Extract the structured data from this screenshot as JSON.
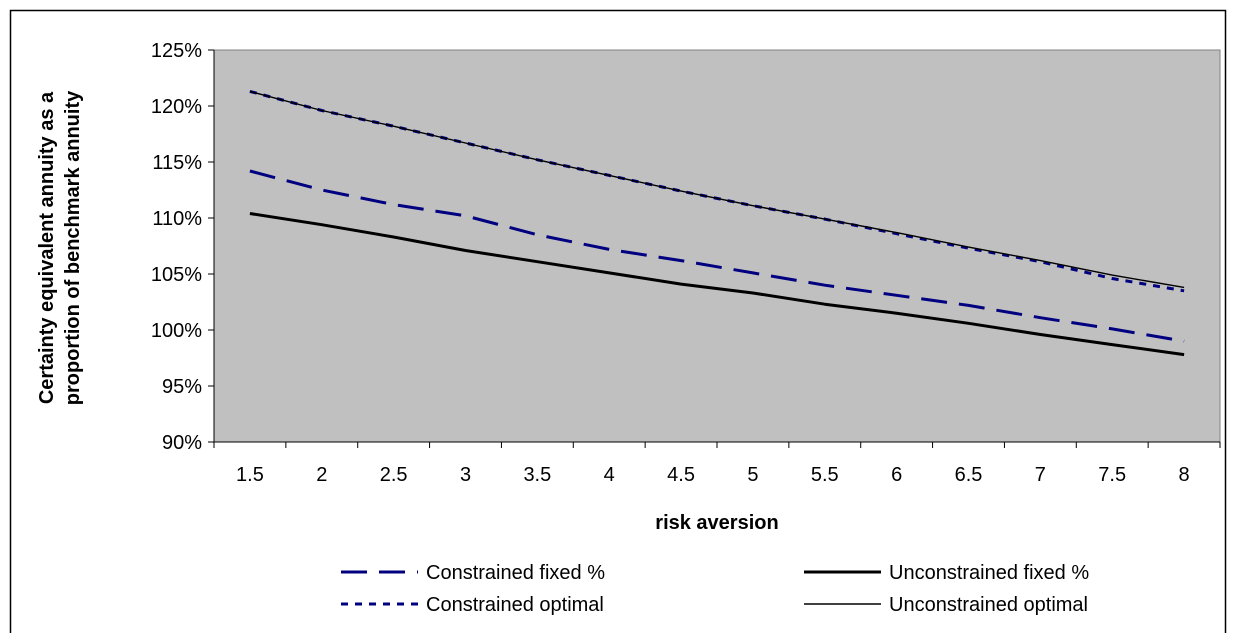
{
  "chart_data": {
    "type": "line",
    "title": "",
    "xlabel": "risk aversion",
    "ylabel_line1": "Certainty equivalent annuity as a",
    "ylabel_line2": "proportion of benchmark annuity",
    "x": [
      1.5,
      2,
      2.5,
      3,
      3.5,
      4,
      4.5,
      5,
      5.5,
      6,
      6.5,
      7,
      7.5,
      8
    ],
    "x_tick_labels": [
      "1.5",
      "2",
      "2.5",
      "3",
      "3.5",
      "4",
      "4.5",
      "5",
      "5.5",
      "6",
      "6.5",
      "7",
      "7.5",
      "8"
    ],
    "ylim": [
      90,
      125
    ],
    "y_tick_values": [
      90,
      95,
      100,
      105,
      110,
      115,
      120,
      125
    ],
    "y_tick_labels": [
      "90%",
      "95%",
      "100%",
      "105%",
      "110%",
      "115%",
      "120%",
      "125%"
    ],
    "grid": false,
    "plot_background": "#C0C0C0",
    "legend_position": "bottom",
    "series": [
      {
        "name": "Constrained fixed %",
        "color": "#000080",
        "style": "long-dash",
        "values": [
          114.2,
          112.5,
          111.2,
          110.2,
          108.5,
          107.2,
          106.2,
          105.1,
          104.0,
          103.1,
          102.2,
          101.1,
          100.1,
          99.0
        ]
      },
      {
        "name": "Unconstrained fixed %",
        "color": "#000000",
        "style": "thick-solid",
        "values": [
          110.4,
          109.4,
          108.3,
          107.1,
          106.1,
          105.1,
          104.1,
          103.3,
          102.3,
          101.5,
          100.6,
          99.6,
          98.7,
          97.8
        ]
      },
      {
        "name": "Constrained optimal",
        "color": "#000080",
        "style": "dotted",
        "values": [
          121.3,
          119.6,
          118.2,
          116.7,
          115.2,
          113.8,
          112.4,
          111.1,
          109.9,
          108.6,
          107.3,
          106.1,
          104.6,
          103.5
        ]
      },
      {
        "name": "Unconstrained optimal",
        "color": "#000000",
        "style": "thin-solid",
        "values": [
          121.3,
          119.6,
          118.2,
          116.7,
          115.2,
          113.8,
          112.4,
          111.1,
          109.9,
          108.7,
          107.4,
          106.2,
          104.9,
          103.8
        ]
      }
    ]
  }
}
